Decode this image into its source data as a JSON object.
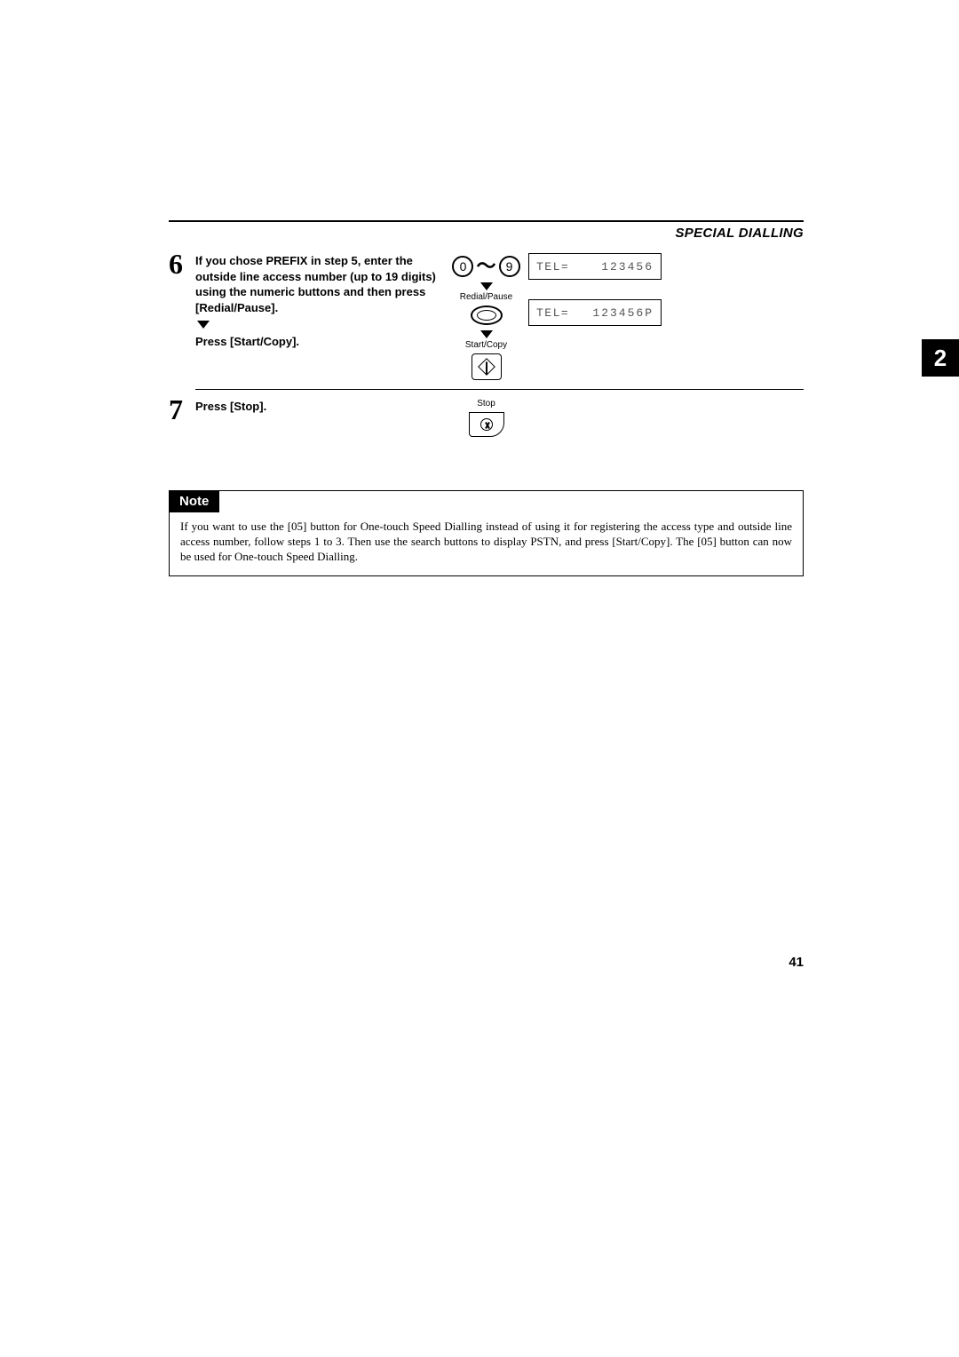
{
  "header": {
    "section_title": "SPECIAL DIALLING"
  },
  "chapter_tab": "2",
  "page_number": "41",
  "step6": {
    "number": "6",
    "line1": "If you chose PREFIX in step 5, enter the outside line access number (up to 19 digits) using the numeric buttons and then press [Redial/Pause].",
    "line2": "Press [Start/Copy].",
    "key_from": "0",
    "key_to": "9",
    "label_redial": "Redial/Pause",
    "label_startcopy": "Start/Copy",
    "lcd1_left": "TEL=",
    "lcd1_right": "123456",
    "lcd2_left": "TEL=",
    "lcd2_right": "123456P"
  },
  "step7": {
    "number": "7",
    "text": "Press [Stop].",
    "label_stop": "Stop"
  },
  "note": {
    "title": "Note",
    "body": "If you want to use the [05] button for One-touch Speed Dialling instead of using it for registering the access type and outside line access number, follow steps 1 to 3. Then use the search buttons to display PSTN, and press [Start/Copy]. The [05] button can now be used for One-touch Speed Dialling."
  }
}
